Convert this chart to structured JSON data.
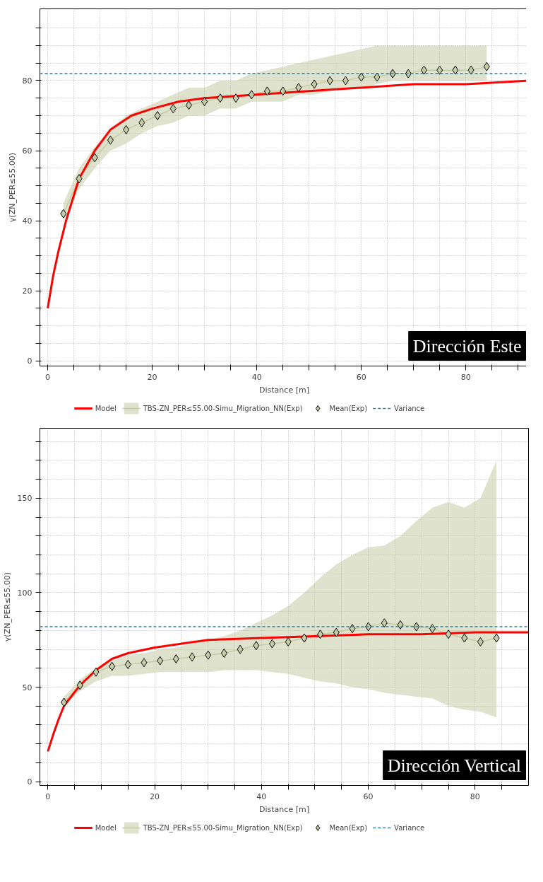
{
  "chart_data": [
    {
      "type": "line",
      "xlabel": "Distance [m]",
      "ylabel": "γ(ZN_PER≤55.00)",
      "xlim": [
        -1.5,
        92
      ],
      "ylim": [
        -1.5,
        100.5
      ],
      "xticks": [
        0,
        {
          "value": 5,
          "label": null
        },
        {
          "value": 10,
          "label": null
        },
        {
          "value": 15,
          "label": null
        },
        20,
        {
          "value": 25,
          "label": null
        },
        {
          "value": 30,
          "label": null
        },
        {
          "value": 35,
          "label": null
        },
        40,
        {
          "value": 45,
          "label": null
        },
        {
          "value": 50,
          "label": null
        },
        {
          "value": 55,
          "label": null
        },
        60,
        {
          "value": 65,
          "label": null
        },
        {
          "value": 70,
          "label": null
        },
        {
          "value": 75,
          "label": null
        },
        80,
        {
          "value": 85,
          "label": null
        },
        {
          "value": 90,
          "label": null
        }
      ],
      "yticks": [
        0,
        {
          "value": 5,
          "label": null
        },
        {
          "value": 10,
          "label": null
        },
        {
          "value": 15,
          "label": null
        },
        20,
        {
          "value": 25,
          "label": null
        },
        {
          "value": 30,
          "label": null
        },
        {
          "value": 35,
          "label": null
        },
        40,
        {
          "value": 45,
          "label": null
        },
        {
          "value": 50,
          "label": null
        },
        {
          "value": 55,
          "label": null
        },
        60,
        {
          "value": 65,
          "label": null
        },
        {
          "value": 70,
          "label": null
        },
        {
          "value": 75,
          "label": null
        },
        80,
        {
          "value": 85,
          "label": null
        },
        {
          "value": 90,
          "label": null
        },
        {
          "value": 95,
          "label": null
        }
      ],
      "grid": true,
      "legend": "bottom",
      "series": [
        {
          "name": "Model",
          "type": "line",
          "color": "#ff0000",
          "x": [
            0,
            1,
            2,
            3.5,
            6,
            9,
            12,
            16,
            20,
            25,
            30,
            40,
            50,
            60,
            70,
            80,
            92
          ],
          "values": [
            15,
            24,
            31,
            40,
            52,
            60,
            66,
            70,
            72,
            74,
            75,
            76,
            77,
            78,
            79,
            79,
            80
          ]
        },
        {
          "name": "TBS-ZN_PER≤55.00-Simu_Migration_NN(Exp)",
          "type": "line",
          "color": "#c4cca4",
          "x": [
            3,
            6,
            9,
            12,
            15,
            18,
            21,
            24,
            27,
            30,
            33,
            36,
            39,
            42,
            45,
            48,
            51,
            54,
            57,
            60,
            63,
            66,
            69,
            72,
            75,
            78,
            81,
            84
          ],
          "values": [
            42,
            52,
            58,
            63,
            66,
            68,
            70,
            72,
            73,
            74,
            75,
            75,
            76,
            77,
            77,
            78,
            79,
            80,
            80,
            81,
            81,
            82,
            82,
            83,
            83,
            83,
            83,
            84
          ],
          "lower": [
            40,
            49,
            55,
            60,
            62,
            65,
            67,
            68,
            70,
            70,
            72,
            72,
            74,
            74,
            74,
            76,
            76,
            77,
            78,
            78,
            79,
            80,
            80,
            80,
            80,
            80,
            80,
            80
          ],
          "upper": [
            45,
            55,
            61,
            66,
            70,
            72,
            74,
            76,
            78,
            78,
            80,
            80,
            82,
            83,
            84,
            85,
            86,
            87,
            88,
            89,
            90,
            90,
            90,
            90,
            90,
            90,
            90,
            90
          ]
        },
        {
          "name": "Mean(Exp)",
          "type": "scatter",
          "marker": "diamond",
          "color": "#c4cca4",
          "x": [
            3,
            6,
            9,
            12,
            15,
            18,
            21,
            24,
            27,
            30,
            33,
            36,
            39,
            42,
            45,
            48,
            51,
            54,
            57,
            60,
            63,
            66,
            69,
            72,
            75,
            78,
            81,
            84
          ],
          "values": [
            42,
            52,
            58,
            63,
            66,
            68,
            70,
            72,
            73,
            74,
            75,
            75,
            76,
            77,
            77,
            78,
            79,
            80,
            80,
            81,
            81,
            82,
            82,
            83,
            83,
            83,
            83,
            84
          ]
        }
      ],
      "ref_lines": [
        {
          "axis": "y",
          "value": 82,
          "label": "Variance",
          "color": "#2e7d9a",
          "line_style": "dashed"
        }
      ],
      "annotations": [
        "Dirección Este"
      ]
    },
    {
      "type": "line",
      "xlabel": "Distance [m]",
      "ylabel": "γ(ZN_PER≤55.00)",
      "xlim": [
        -1.5,
        90
      ],
      "ylim": [
        -2,
        187
      ],
      "xticks": [
        0,
        {
          "value": 5,
          "label": null
        },
        {
          "value": 10,
          "label": null
        },
        {
          "value": 15,
          "label": null
        },
        20,
        {
          "value": 25,
          "label": null
        },
        {
          "value": 30,
          "label": null
        },
        {
          "value": 35,
          "label": null
        },
        40,
        {
          "value": 45,
          "label": null
        },
        {
          "value": 50,
          "label": null
        },
        {
          "value": 55,
          "label": null
        },
        60,
        {
          "value": 65,
          "label": null
        },
        {
          "value": 70,
          "label": null
        },
        {
          "value": 75,
          "label": null
        },
        80,
        {
          "value": 85,
          "label": null
        }
      ],
      "yticks": [
        0,
        {
          "value": 10,
          "label": null
        },
        {
          "value": 20,
          "label": null
        },
        {
          "value": 30,
          "label": null
        },
        {
          "value": 40,
          "label": null
        },
        50,
        {
          "value": 60,
          "label": null
        },
        {
          "value": 70,
          "label": null
        },
        {
          "value": 80,
          "label": null
        },
        {
          "value": 90,
          "label": null
        },
        100,
        {
          "value": 110,
          "label": null
        },
        {
          "value": 120,
          "label": null
        },
        {
          "value": 130,
          "label": null
        },
        {
          "value": 140,
          "label": null
        },
        150,
        {
          "value": 160,
          "label": null
        },
        {
          "value": 170,
          "label": null
        },
        {
          "value": 180,
          "label": null
        }
      ],
      "grid": true,
      "legend": "bottom",
      "series": [
        {
          "name": "Model",
          "type": "line",
          "color": "#ff0000",
          "x": [
            0,
            1,
            2,
            3,
            6,
            9,
            12,
            15,
            20,
            25,
            30,
            40,
            50,
            60,
            70,
            80,
            90
          ],
          "values": [
            16,
            25,
            33,
            40,
            51,
            59,
            65,
            68,
            71,
            73,
            75,
            76,
            77,
            78,
            78,
            79,
            79
          ]
        },
        {
          "name": "TBS-ZN_PER≤55.00-Simu_Migration_NN(Exp)",
          "type": "line",
          "color": "#c4cca4",
          "x": [
            3,
            6,
            9,
            12,
            15,
            18,
            21,
            24,
            27,
            30,
            33,
            36,
            39,
            42,
            45,
            48,
            51,
            54,
            57,
            60,
            63,
            66,
            69,
            72,
            75,
            78,
            81,
            84
          ],
          "values": [
            42,
            51,
            58,
            61,
            62,
            63,
            64,
            65,
            66,
            67,
            68,
            70,
            72,
            73,
            74,
            76,
            78,
            79,
            81,
            82,
            84,
            83,
            82,
            81,
            78,
            76,
            74,
            76
          ],
          "lower": [
            40,
            48,
            53,
            56,
            56,
            57,
            58,
            58,
            58,
            58,
            59,
            59,
            59,
            58,
            57,
            55,
            53,
            52,
            50,
            49,
            47,
            46,
            45,
            44,
            40,
            38,
            37,
            34
          ],
          "upper": [
            45,
            54,
            60,
            64,
            67,
            68,
            70,
            71,
            73,
            75,
            77,
            80,
            84,
            88,
            93,
            100,
            108,
            115,
            120,
            124,
            125,
            130,
            138,
            145,
            148,
            145,
            150,
            170
          ]
        },
        {
          "name": "Mean(Exp)",
          "type": "scatter",
          "marker": "diamond",
          "color": "#c4cca4",
          "x": [
            3,
            6,
            9,
            12,
            15,
            18,
            21,
            24,
            27,
            30,
            33,
            36,
            39,
            42,
            45,
            48,
            51,
            54,
            57,
            60,
            63,
            66,
            69,
            72,
            75,
            78,
            81,
            84
          ],
          "values": [
            42,
            51,
            58,
            61,
            62,
            63,
            64,
            65,
            66,
            67,
            68,
            70,
            72,
            73,
            74,
            76,
            78,
            79,
            81,
            82,
            84,
            83,
            82,
            81,
            78,
            76,
            74,
            76
          ]
        }
      ],
      "ref_lines": [
        {
          "axis": "y",
          "value": 82,
          "label": "Variance",
          "color": "#2e7d9a",
          "line_style": "dashed"
        }
      ],
      "annotations": [
        "Dirección Vertical"
      ]
    }
  ]
}
